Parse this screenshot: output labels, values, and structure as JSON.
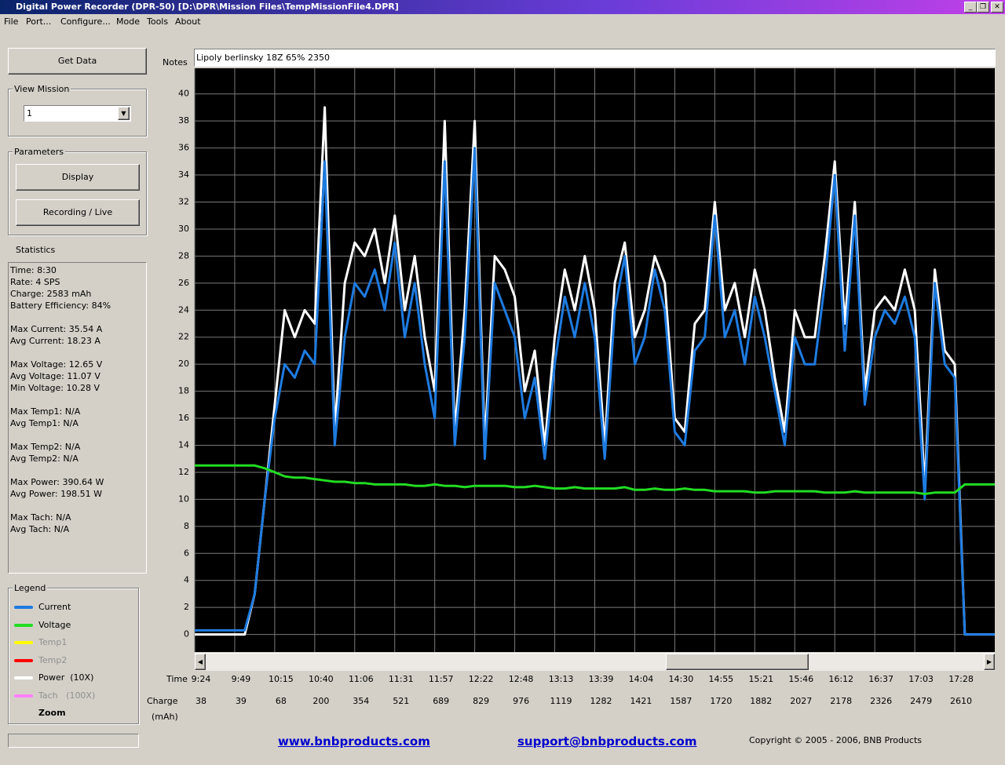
{
  "window": {
    "title": "Digital Power Recorder (DPR-50) [D:\\DPR\\Mission Files\\TempMissionFile4.DPR]"
  },
  "menu": [
    "File",
    "Port...",
    "Configure...",
    "Mode",
    "Tools",
    "About"
  ],
  "sidebar": {
    "get_data": "Get Data",
    "view_mission": {
      "label": "View Mission",
      "value": "1"
    },
    "parameters": {
      "label": "Parameters",
      "buttons": [
        "Display",
        "Recording / Live"
      ]
    },
    "statistics": {
      "label": "Statistics",
      "groups": [
        [
          "Time: 8:30",
          "Rate: 4 SPS",
          "Charge: 2583 mAh",
          "Battery Efficiency: 84%"
        ],
        [
          "Max Current: 35.54 A",
          "Avg Current: 18.23 A"
        ],
        [
          "Max Voltage: 12.65 V",
          "Avg Voltage: 11.07 V",
          "Min Voltage: 10.28 V"
        ],
        [
          "Max Temp1: N/A",
          "Avg Temp1: N/A"
        ],
        [
          "Max Temp2: N/A",
          "Avg Temp2: N/A"
        ],
        [
          "Max Power: 390.64 W",
          "Avg Power: 198.51 W"
        ],
        [
          "Max Tach: N/A",
          "Avg Tach: N/A"
        ]
      ]
    },
    "legend": {
      "label": "Legend",
      "inactive": [
        {
          "name": "Temp1",
          "color": "#ffff00"
        },
        {
          "name": "Temp2",
          "color": "#ff0000"
        },
        {
          "name": "Tach   (100X)",
          "color": "#ff80ff"
        }
      ],
      "zoom": "Zoom"
    }
  },
  "notes": {
    "label": "Notes",
    "value": "Lipoly berlinsky 18Z 65% 2350"
  },
  "chart_data": {
    "type": "line",
    "x_label": "Time",
    "charge_label": [
      "Charge",
      "(mAh)"
    ],
    "xlim": [
      0,
      20
    ],
    "xticks": [
      {
        "value": 0,
        "label": "9:24"
      },
      {
        "value": 1,
        "label": "9:49"
      },
      {
        "value": 2,
        "label": "10:15"
      },
      {
        "value": 3,
        "label": "10:40"
      },
      {
        "value": 4,
        "label": "11:06"
      },
      {
        "value": 5,
        "label": "11:31"
      },
      {
        "value": 6,
        "label": "11:57"
      },
      {
        "value": 7,
        "label": "12:22"
      },
      {
        "value": 8,
        "label": "12:48"
      },
      {
        "value": 9,
        "label": "13:13"
      },
      {
        "value": 10,
        "label": "13:39"
      },
      {
        "value": 11,
        "label": "14:04"
      },
      {
        "value": 12,
        "label": "14:30"
      },
      {
        "value": 13,
        "label": "14:55"
      },
      {
        "value": 14,
        "label": "15:21"
      },
      {
        "value": 15,
        "label": "15:46"
      },
      {
        "value": 16,
        "label": "16:12"
      },
      {
        "value": 17,
        "label": "16:37"
      },
      {
        "value": 18,
        "label": "17:03"
      },
      {
        "value": 19,
        "label": "17:28"
      }
    ],
    "charge_ticks": [
      38,
      39,
      68,
      200,
      354,
      521,
      689,
      829,
      976,
      1119,
      1282,
      1421,
      1587,
      1720,
      1882,
      2027,
      2178,
      2326,
      2479,
      2610
    ],
    "ylim": [
      -1.3,
      41.9
    ],
    "yticks": [
      0,
      2,
      4,
      6,
      8,
      10,
      12,
      14,
      16,
      18,
      20,
      22,
      24,
      26,
      28,
      30,
      32,
      34,
      36,
      38,
      40
    ],
    "grid": true,
    "x": [
      0,
      0.25,
      0.5,
      0.75,
      1,
      1.25,
      1.5,
      1.75,
      2,
      2.25,
      2.5,
      2.75,
      3,
      3.25,
      3.5,
      3.75,
      4,
      4.25,
      4.5,
      4.75,
      5,
      5.25,
      5.5,
      5.75,
      6,
      6.25,
      6.5,
      6.75,
      7,
      7.25,
      7.5,
      7.75,
      8,
      8.25,
      8.5,
      8.75,
      9,
      9.25,
      9.5,
      9.75,
      10,
      10.25,
      10.5,
      10.75,
      11,
      11.25,
      11.5,
      11.75,
      12,
      12.25,
      12.5,
      12.75,
      13,
      13.25,
      13.5,
      13.75,
      14,
      14.25,
      14.5,
      14.75,
      15,
      15.25,
      15.5,
      15.75,
      16,
      16.25,
      16.5,
      16.75,
      17,
      17.25,
      17.5,
      17.75,
      18,
      18.25,
      18.5,
      18.75,
      19,
      19.25,
      19.5,
      19.75,
      20
    ],
    "series": [
      {
        "name": "Current",
        "color": "#1e7be0",
        "values": [
          0.3,
          0.3,
          0.3,
          0.3,
          0.3,
          0.3,
          3,
          10,
          16,
          20,
          19,
          21,
          20,
          35,
          14,
          22,
          26,
          25,
          27,
          24,
          29,
          22,
          26,
          20,
          16,
          35,
          14,
          22,
          36,
          13,
          26,
          24,
          22,
          16,
          19,
          13,
          20,
          25,
          22,
          26,
          22,
          13,
          24,
          28,
          20,
          22,
          27,
          24,
          15,
          14,
          21,
          22,
          31,
          22,
          24,
          20,
          25,
          22,
          18,
          14,
          22,
          20,
          20,
          26,
          34,
          21,
          31,
          17,
          22,
          24,
          23,
          25,
          22,
          10,
          26,
          20,
          19,
          0,
          0,
          0,
          0
        ]
      },
      {
        "name": "Voltage",
        "color": "#22dd22",
        "values": [
          12.5,
          12.5,
          12.5,
          12.5,
          12.5,
          12.5,
          12.5,
          12.3,
          12.0,
          11.7,
          11.6,
          11.6,
          11.5,
          11.4,
          11.3,
          11.3,
          11.2,
          11.2,
          11.1,
          11.1,
          11.1,
          11.1,
          11.0,
          11.0,
          11.1,
          11.0,
          11.0,
          10.9,
          11.0,
          11.0,
          11.0,
          11.0,
          10.9,
          10.9,
          11.0,
          10.9,
          10.8,
          10.8,
          10.9,
          10.8,
          10.8,
          10.8,
          10.8,
          10.9,
          10.7,
          10.7,
          10.8,
          10.7,
          10.7,
          10.8,
          10.7,
          10.7,
          10.6,
          10.6,
          10.6,
          10.6,
          10.5,
          10.5,
          10.6,
          10.6,
          10.6,
          10.6,
          10.6,
          10.5,
          10.5,
          10.5,
          10.6,
          10.5,
          10.5,
          10.5,
          10.5,
          10.5,
          10.5,
          10.4,
          10.5,
          10.5,
          10.5,
          11.1,
          11.1,
          11.1,
          11.1
        ]
      },
      {
        "name": "Power  (10X)",
        "color": "#ffffff",
        "values": [
          0,
          0,
          0,
          0,
          0,
          0,
          3,
          10,
          17,
          24,
          22,
          24,
          23,
          39,
          15,
          26,
          29,
          28,
          30,
          26,
          31,
          24,
          28,
          22,
          18,
          38,
          15,
          24,
          38,
          14,
          28,
          27,
          25,
          18,
          21,
          14,
          22,
          27,
          24,
          28,
          24,
          14,
          26,
          29,
          22,
          24,
          28,
          26,
          16,
          15,
          23,
          24,
          32,
          24,
          26,
          22,
          27,
          24,
          19,
          15,
          24,
          22,
          22,
          28,
          35,
          23,
          32,
          18,
          24,
          25,
          24,
          27,
          24,
          11,
          27,
          21,
          20,
          0,
          0,
          0,
          0
        ]
      }
    ]
  },
  "footer": {
    "website": "www.bnbproducts.com",
    "support": "support@bnbproducts.com",
    "copyright": "Copyright © 2005 - 2006, BNB Products"
  }
}
